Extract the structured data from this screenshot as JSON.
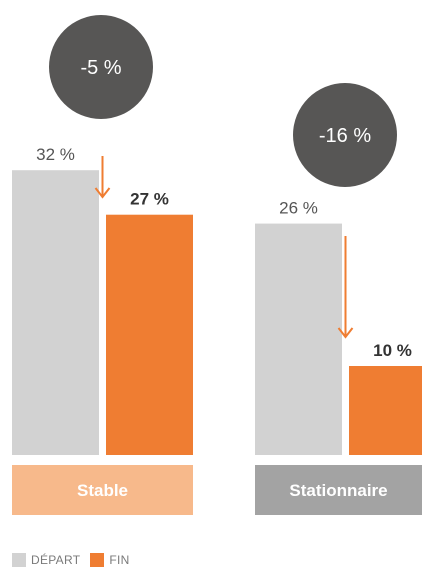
{
  "chart_data": {
    "type": "bar",
    "ylim": [
      0,
      40
    ],
    "series": [
      {
        "name": "DÉPART",
        "color": "#d2d2d2"
      },
      {
        "name": "FIN",
        "color": "#ef7d32"
      }
    ],
    "groups": [
      {
        "category": "Stable",
        "start_value": 32,
        "end_value": 27,
        "start_label": "32 %",
        "end_label": "27 %",
        "change_label": "-5 %",
        "category_color": "#f7b98b"
      },
      {
        "category": "Stationnaire",
        "start_value": 26,
        "end_value": 10,
        "start_label": "26 %",
        "end_label": "10 %",
        "change_label": "-16 %",
        "category_color": "#a3a3a3"
      }
    ],
    "arrow_color": "#ef7d32",
    "bubble_color": "#575655",
    "legend": [
      {
        "label": "DÉPART",
        "color": "#d2d2d2"
      },
      {
        "label": "FIN",
        "color": "#ef7d32"
      }
    ]
  }
}
